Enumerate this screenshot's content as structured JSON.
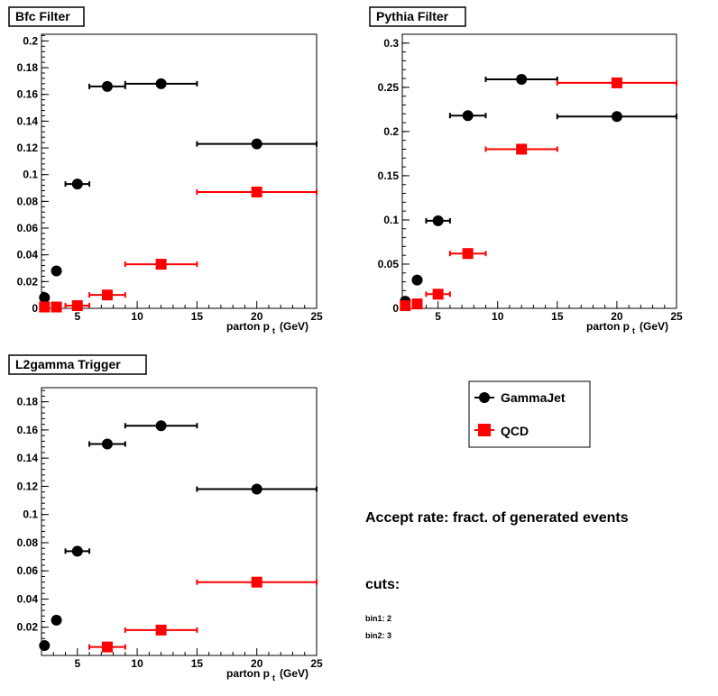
{
  "chart_data": [
    {
      "type": "scatter",
      "title": "Bfc Filter",
      "xlabel_main": "parton p",
      "xlabel_sub": "t",
      "xlabel_unit": "(GeV)",
      "xlim": [
        2,
        25
      ],
      "ylim": [
        0,
        0.205
      ],
      "xticks": [
        5,
        10,
        15,
        20,
        25
      ],
      "yticks": [
        0,
        0.02,
        0.04,
        0.06,
        0.08,
        0.1,
        0.12,
        0.14,
        0.16,
        0.18,
        0.2
      ],
      "ytick_labels": [
        "0",
        "0.02",
        "0.04",
        "0.06",
        "0.08",
        "0.1",
        "0.12",
        "0.14",
        "0.16",
        "0.18",
        "0.2"
      ],
      "series": [
        {
          "name": "GammaJet",
          "color": "#000000",
          "marker": "circle",
          "x": [
            2.25,
            3.25,
            5,
            7.5,
            12,
            20
          ],
          "xlow": [
            2,
            3,
            4,
            6,
            9,
            15
          ],
          "xhigh": [
            2.5,
            3.5,
            6,
            9,
            15,
            25
          ],
          "y": [
            0.008,
            0.028,
            0.093,
            0.166,
            0.168,
            0.123
          ]
        },
        {
          "name": "QCD",
          "color": "#ff0000",
          "marker": "square",
          "x": [
            2.25,
            3.25,
            5,
            7.5,
            12,
            20
          ],
          "xlow": [
            2,
            3,
            4,
            6,
            9,
            15
          ],
          "xhigh": [
            2.5,
            3.5,
            6,
            9,
            15,
            25
          ],
          "y": [
            0.001,
            0.001,
            0.002,
            0.01,
            0.033,
            0.087
          ]
        }
      ]
    },
    {
      "type": "scatter",
      "title": "Pythia Filter",
      "xlabel_main": "parton p",
      "xlabel_sub": "t",
      "xlabel_unit": "(GeV)",
      "xlim": [
        2,
        25
      ],
      "ylim": [
        0,
        0.31
      ],
      "xticks": [
        5,
        10,
        15,
        20,
        25
      ],
      "yticks": [
        0,
        0.05,
        0.1,
        0.15,
        0.2,
        0.25,
        0.3
      ],
      "ytick_labels": [
        "0",
        "0.05",
        "0.1",
        "0.15",
        "0.2",
        "0.25",
        "0.3"
      ],
      "series": [
        {
          "name": "GammaJet",
          "color": "#000000",
          "marker": "circle",
          "x": [
            2.25,
            3.25,
            5,
            7.5,
            12,
            20
          ],
          "xlow": [
            2,
            3,
            4,
            6,
            9,
            15
          ],
          "xhigh": [
            2.5,
            3.5,
            6,
            9,
            15,
            25
          ],
          "y": [
            0.008,
            0.032,
            0.099,
            0.218,
            0.259,
            0.217
          ]
        },
        {
          "name": "QCD",
          "color": "#ff0000",
          "marker": "square",
          "x": [
            2.25,
            3.25,
            5,
            7.5,
            12,
            20
          ],
          "xlow": [
            2,
            3,
            4,
            6,
            9,
            15
          ],
          "xhigh": [
            2.5,
            3.5,
            6,
            9,
            15,
            25
          ],
          "y": [
            0.003,
            0.005,
            0.016,
            0.062,
            0.18,
            0.255
          ]
        }
      ]
    },
    {
      "type": "scatter",
      "title": "L2gamma Trigger",
      "xlabel_main": "parton p",
      "xlabel_sub": "t",
      "xlabel_unit": "(GeV)",
      "xlim": [
        2,
        25
      ],
      "ylim": [
        0,
        0.19
      ],
      "xticks": [
        5,
        10,
        15,
        20,
        25
      ],
      "yticks": [
        0.02,
        0.04,
        0.06,
        0.08,
        0.1,
        0.12,
        0.14,
        0.16,
        0.18
      ],
      "ytick_labels": [
        "0.02",
        "0.04",
        "0.06",
        "0.08",
        "0.1",
        "0.12",
        "0.14",
        "0.16",
        "0.18"
      ],
      "series": [
        {
          "name": "GammaJet",
          "color": "#000000",
          "marker": "circle",
          "x": [
            2.25,
            3.25,
            5,
            7.5,
            12,
            20
          ],
          "xlow": [
            2,
            3,
            4,
            6,
            9,
            15
          ],
          "xhigh": [
            2.5,
            3.5,
            6,
            9,
            15,
            25
          ],
          "y": [
            0.007,
            0.025,
            0.074,
            0.15,
            0.163,
            0.118
          ]
        },
        {
          "name": "QCD",
          "color": "#ff0000",
          "marker": "square",
          "x": [
            7.5,
            12,
            20
          ],
          "xlow": [
            6,
            9,
            15
          ],
          "xhigh": [
            9,
            15,
            25
          ],
          "y": [
            0.006,
            0.018,
            0.052
          ]
        }
      ]
    }
  ],
  "legend": {
    "entries": [
      {
        "label": "GammaJet",
        "color": "#000000",
        "marker": "circle"
      },
      {
        "label": "QCD",
        "color": "#ff0000",
        "marker": "square"
      }
    ]
  },
  "info": {
    "accept_rate": "Accept rate: fract. of generated events",
    "cuts_label": "cuts:",
    "bin1": "bin1: 2",
    "bin2": "bin2: 3"
  }
}
